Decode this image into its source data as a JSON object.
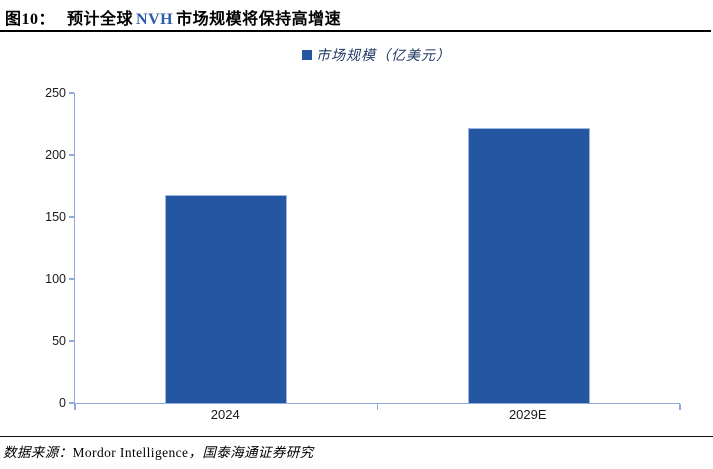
{
  "figure": {
    "label": "图10：",
    "title_pre": "预计全球",
    "title_en": "NVH",
    "title_post": "市场规模将保持高增速"
  },
  "legend": {
    "label": "市场规模（亿美元）"
  },
  "source": {
    "prefix": "数据来源：",
    "vendor": "Mordor Intelligence",
    "suffix": "，国泰海通证券研究"
  },
  "chart_data": {
    "type": "bar",
    "title": "预计全球NVH市场规模将保持高增速",
    "series_name": "市场规模（亿美元）",
    "categories": [
      "2024",
      "2029E"
    ],
    "values": [
      168,
      222
    ],
    "ylim": [
      0,
      250
    ],
    "yticks": [
      0,
      50,
      100,
      150,
      200,
      250
    ],
    "grid": false,
    "legend_position": "top-center",
    "colors": {
      "bar": "#2456A2",
      "axis": "#8FAADC",
      "legend_text": "#1F3864",
      "title_accent": "#2B5CAD"
    }
  }
}
